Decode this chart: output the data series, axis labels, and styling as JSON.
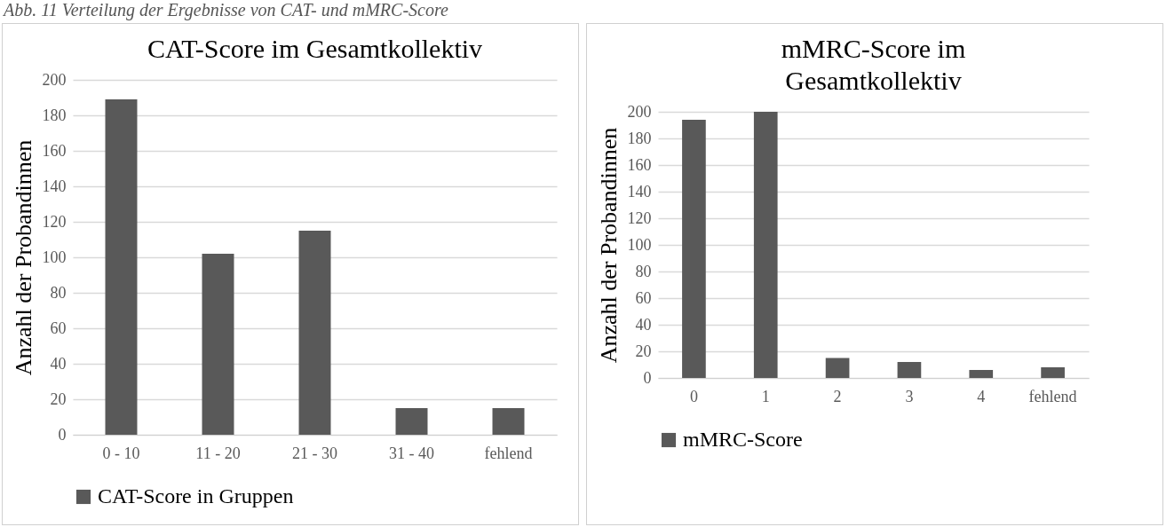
{
  "chart_data": [
    {
      "type": "bar",
      "title": "CAT-Score im Gesamtkollektiv",
      "ylabel": "Anzahl der Probandinnen",
      "categories": [
        "0 - 10",
        "11 - 20",
        "21 - 30",
        "31 - 40",
        "fehlend"
      ],
      "series": [
        {
          "name": "CAT-Score in Gruppen",
          "color": "#595959",
          "values": [
            189,
            102,
            115,
            15,
            15
          ]
        }
      ],
      "ylim": [
        0,
        200
      ],
      "yticks": [
        0,
        20,
        40,
        60,
        80,
        100,
        120,
        140,
        160,
        180,
        200
      ],
      "grid": "y",
      "legend": "bottom",
      "annotations": [
        "Abb. 11 Verteilung der Ergebnisse von CAT- und mMRC-Score"
      ]
    },
    {
      "type": "bar",
      "title": "mMRC-Score im Gesamtkollektiv",
      "ylabel": "Anzahl der Probandinnen",
      "categories": [
        "0",
        "1",
        "2",
        "3",
        "4",
        "fehlend"
      ],
      "series": [
        {
          "name": "mMRC-Score",
          "color": "#595959",
          "values": [
            194,
            200,
            15,
            12,
            6,
            8
          ]
        }
      ],
      "ylim": [
        0,
        200
      ],
      "yticks": [
        0,
        20,
        40,
        60,
        80,
        100,
        120,
        140,
        160,
        180,
        200
      ],
      "grid": "y",
      "legend": "bottom"
    }
  ]
}
